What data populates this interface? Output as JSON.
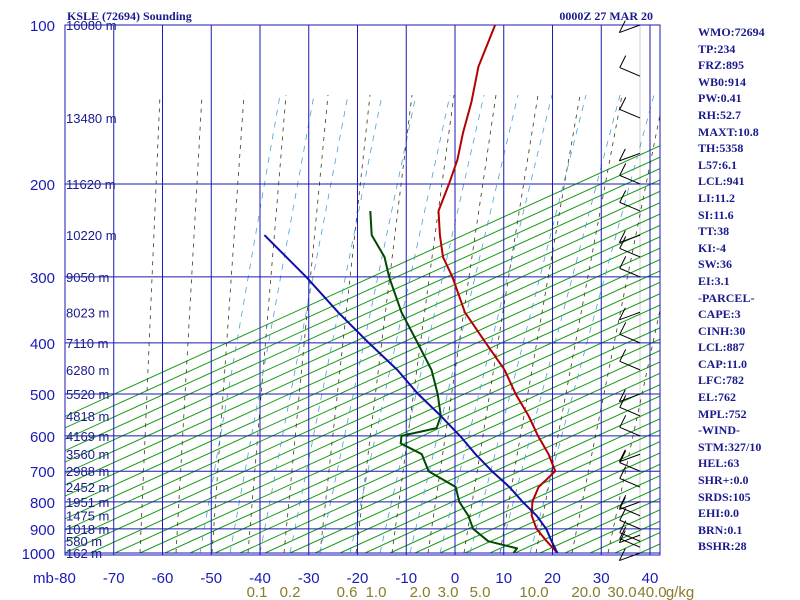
{
  "chart_data": {
    "type": "line",
    "title_left": "KSLE (72694) Sounding",
    "title_right": "0000Z 27 MAR 20",
    "pressure_axis_label": "mb",
    "pressure_ticks": [
      100,
      200,
      300,
      400,
      500,
      600,
      700,
      800,
      900,
      1000
    ],
    "temperature_ticks": [
      -80,
      -70,
      -60,
      -50,
      -40,
      -30,
      -20,
      -10,
      0,
      10,
      20,
      30,
      40
    ],
    "mixing_ratio_ticks": [
      "0.1",
      "0.2",
      "0.6",
      "1.0",
      "2.0",
      "3.0",
      "5.0",
      "10.0",
      "20.0",
      "30.0",
      "40.0"
    ],
    "mixing_ratio_unit": "g/kg",
    "height_labels": [
      {
        "p": 100,
        "label": "16080 m"
      },
      {
        "p": 150,
        "label": "13480 m"
      },
      {
        "p": 200,
        "label": "11620 m"
      },
      {
        "p": 250,
        "label": "10220 m"
      },
      {
        "p": 300,
        "label": "9050 m"
      },
      {
        "p": 350,
        "label": "8023 m"
      },
      {
        "p": 400,
        "label": "7110 m"
      },
      {
        "p": 450,
        "label": "6280 m"
      },
      {
        "p": 500,
        "label": "5520 m"
      },
      {
        "p": 550,
        "label": "4818 m"
      },
      {
        "p": 600,
        "label": "4169 m"
      },
      {
        "p": 650,
        "label": "3560 m"
      },
      {
        "p": 700,
        "label": "2988 m"
      },
      {
        "p": 750,
        "label": "2452 m"
      },
      {
        "p": 800,
        "label": "1951 m"
      },
      {
        "p": 850,
        "label": "1475 m"
      },
      {
        "p": 900,
        "label": "1018 m"
      },
      {
        "p": 950,
        "label": "580 m"
      },
      {
        "p": 1000,
        "label": "162 m"
      }
    ],
    "series": [
      {
        "name": "temperature",
        "color": "#b40000",
        "points": [
          [
            100,
            -73
          ],
          [
            120,
            -70
          ],
          [
            140,
            -66
          ],
          [
            160,
            -63
          ],
          [
            180,
            -60
          ],
          [
            200,
            -58
          ],
          [
            225,
            -56
          ],
          [
            250,
            -52
          ],
          [
            275,
            -48
          ],
          [
            300,
            -43
          ],
          [
            350,
            -35
          ],
          [
            400,
            -26
          ],
          [
            450,
            -18
          ],
          [
            500,
            -12
          ],
          [
            550,
            -6
          ],
          [
            600,
            -1
          ],
          [
            650,
            4
          ],
          [
            700,
            8
          ],
          [
            750,
            7
          ],
          [
            800,
            8
          ],
          [
            850,
            10
          ],
          [
            900,
            13
          ],
          [
            950,
            17
          ],
          [
            1000,
            21
          ]
        ]
      },
      {
        "name": "dewpoint",
        "color": "#004a00",
        "points": [
          [
            225,
            -70
          ],
          [
            250,
            -66
          ],
          [
            275,
            -60
          ],
          [
            300,
            -56
          ],
          [
            350,
            -48
          ],
          [
            400,
            -40
          ],
          [
            450,
            -33
          ],
          [
            500,
            -28
          ],
          [
            550,
            -24
          ],
          [
            580,
            -23
          ],
          [
            600,
            -29
          ],
          [
            620,
            -28
          ],
          [
            650,
            -22
          ],
          [
            700,
            -18
          ],
          [
            750,
            -10
          ],
          [
            800,
            -7
          ],
          [
            850,
            -3
          ],
          [
            900,
            0
          ],
          [
            950,
            5
          ],
          [
            980,
            12
          ],
          [
            1000,
            12
          ]
        ]
      },
      {
        "name": "parcel",
        "color": "#1010a8",
        "points": [
          [
            250,
            -88
          ],
          [
            300,
            -73
          ],
          [
            350,
            -61
          ],
          [
            400,
            -50
          ],
          [
            450,
            -40
          ],
          [
            500,
            -32
          ],
          [
            550,
            -24
          ],
          [
            600,
            -17
          ],
          [
            650,
            -11
          ],
          [
            700,
            -5
          ],
          [
            750,
            1
          ],
          [
            800,
            6
          ],
          [
            850,
            11
          ],
          [
            900,
            15
          ],
          [
            950,
            18
          ],
          [
            1000,
            21
          ]
        ]
      }
    ],
    "indices": [
      "WMO:72694",
      "TP:234",
      "FRZ:895",
      "WB0:914",
      "PW:0.41",
      "RH:52.7",
      "MAXT:10.8",
      "TH:5358",
      "L57:6.1",
      "LCL:941",
      "LI:11.2",
      "SI:11.6",
      "TT:38",
      "KI:-4",
      "SW:36",
      "EI:3.1",
      "-PARCEL-",
      "CAPE:3",
      "CINH:30",
      "LCL:887",
      "CAP:11.0",
      "LFC:782",
      "EL:762",
      "MPL:752",
      "-WIND-",
      "STM:327/10",
      "HEL:63",
      "SHR+:0.0",
      "SRDS:105",
      "EHI:0.0",
      "BRN:0.1",
      "BSHR:28"
    ],
    "colors": {
      "frame": "#1a1ab4",
      "dry_adiabat": "#1a9a1a",
      "moist_adiabat": "#3a3a1a",
      "mixing_ratio": "#4aa0d8",
      "wind": "#000000"
    }
  }
}
